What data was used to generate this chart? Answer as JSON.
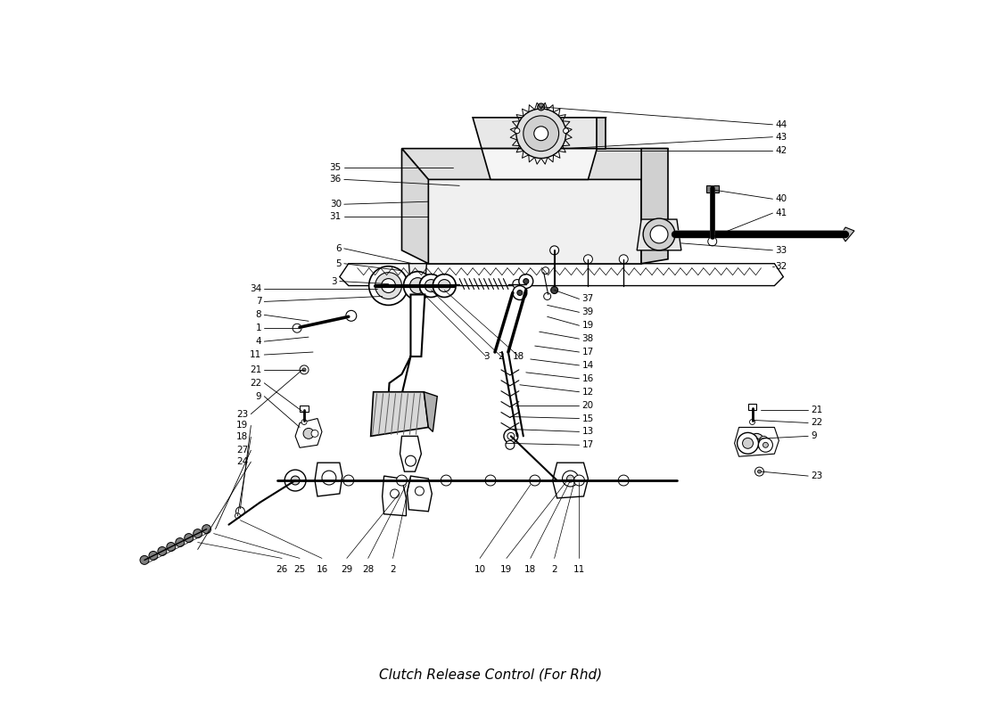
{
  "title": "Clutch Release Control (For Rhd)",
  "bg": "#ffffff",
  "lc": "#000000",
  "tc": "#000000",
  "fs_label": 7.5,
  "fs_title": 11,
  "figsize": [
    11.0,
    8.0
  ],
  "dpi": 100
}
